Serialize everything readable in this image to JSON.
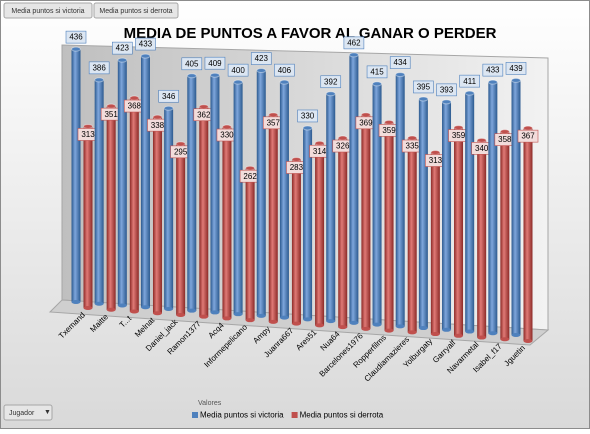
{
  "chart_data": {
    "type": "bar",
    "title": "MEDIA DE PUNTOS A FAVOR AL GANAR O PERDER",
    "category_field": "Jugador",
    "values_field": "Valores",
    "categories": [
      "Txemand",
      "Maitte",
      "T...t",
      "Melnat",
      "Daniel_jack",
      "Ramon1377",
      "Acq4",
      "Informepelicano",
      "Ampy",
      "Juanra667",
      "Ares51",
      "Nua64",
      "Barcelones1976",
      "Ropperfilms",
      "Claudiamazieres",
      "Yolburgaty",
      "Garryalf",
      "Navarmetal",
      "Isabel_f17",
      "Jguetin"
    ],
    "series": [
      {
        "name": "Media puntos si victoria",
        "color": "#4f81bd",
        "values": [
          436,
          386,
          423,
          433,
          346,
          405,
          409,
          400,
          423,
          406,
          330,
          392,
          462,
          415,
          434,
          395,
          393,
          411,
          433,
          439
        ]
      },
      {
        "name": "Media puntos si derrota",
        "color": "#c0504d",
        "values": [
          313,
          351,
          368,
          338,
          295,
          362,
          330,
          262,
          357,
          283,
          314,
          326,
          369,
          359,
          335,
          313,
          359,
          340,
          358,
          367
        ]
      }
    ]
  }
}
